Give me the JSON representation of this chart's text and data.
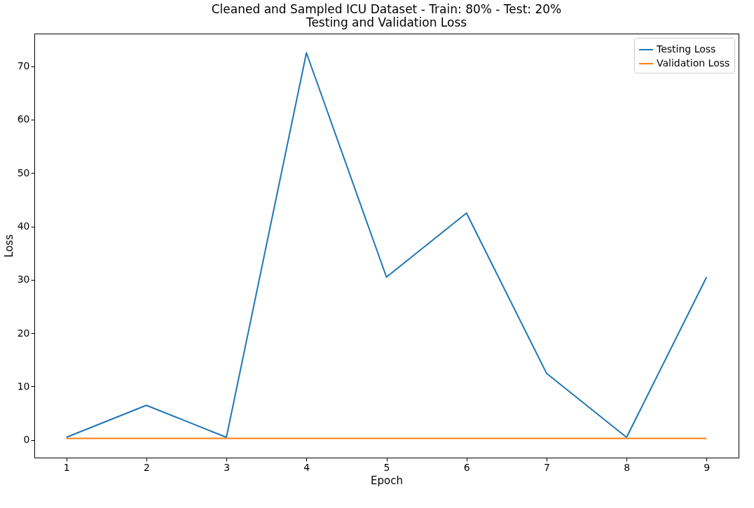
{
  "chart_data": {
    "type": "line",
    "title": [
      "Cleaned and Sampled ICU Dataset - Train: 80% - Test: 20%",
      "Testing and Validation Loss"
    ],
    "xlabel": "Epoch",
    "ylabel": "Loss",
    "x": [
      1,
      2,
      3,
      4,
      5,
      6,
      7,
      8,
      9
    ],
    "series": [
      {
        "name": "Testing Loss",
        "color": "#1f77b4",
        "values": [
          0.5,
          6.5,
          0.5,
          72.5,
          30.5,
          42.5,
          12.5,
          0.5,
          30.5
        ]
      },
      {
        "name": "Validation Loss",
        "color": "#ff7f0e",
        "values": [
          0.3,
          0.3,
          0.3,
          0.3,
          0.3,
          0.3,
          0.3,
          0.3,
          0.3
        ]
      }
    ],
    "xlim": [
      0.6,
      9.4
    ],
    "xticks": [
      1,
      2,
      3,
      4,
      5,
      6,
      7,
      8,
      9
    ],
    "ylim": [
      -3.3,
      76.1
    ],
    "yticks": [
      0,
      10,
      20,
      30,
      40,
      50,
      60,
      70
    ],
    "legend": "top right",
    "grid": false
  }
}
